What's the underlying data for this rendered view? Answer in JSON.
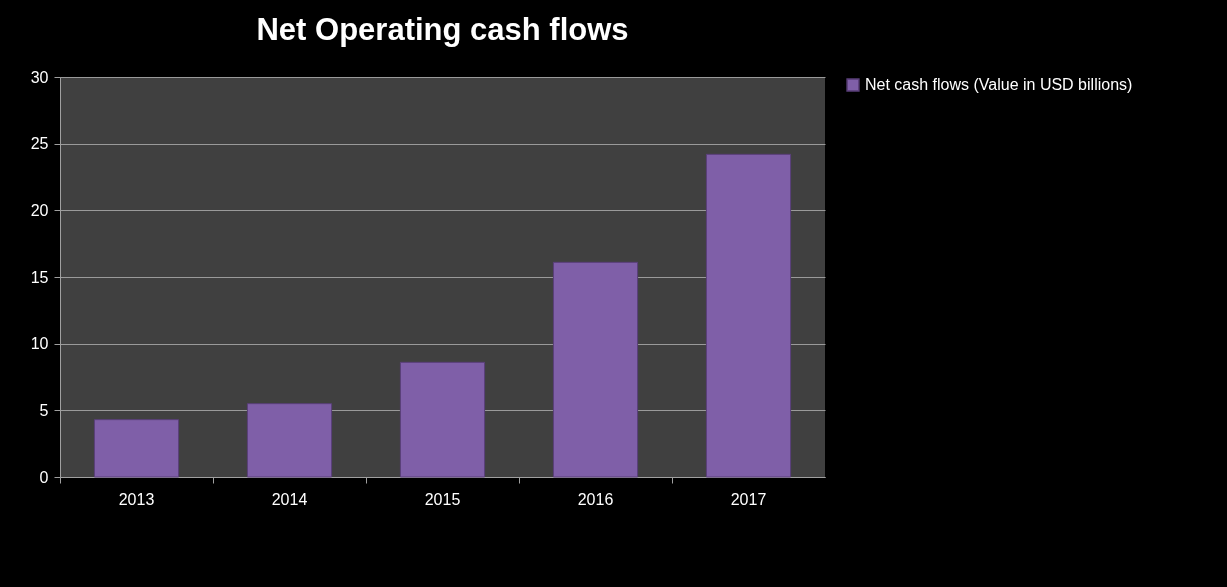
{
  "chart_data": {
    "type": "bar",
    "title": "Net Operating cash flows",
    "categories": [
      "2013",
      "2014",
      "2015",
      "2016",
      "2017"
    ],
    "series": [
      {
        "name": "Net cash flows (Value in USD billions)",
        "color": "#7f5fa8",
        "values": [
          4.3,
          5.5,
          8.6,
          16.1,
          24.2
        ]
      }
    ],
    "ylim": [
      0,
      30
    ],
    "yticks": [
      0,
      5,
      10,
      15,
      20,
      25,
      30
    ],
    "grid": "y",
    "legend": "right"
  }
}
